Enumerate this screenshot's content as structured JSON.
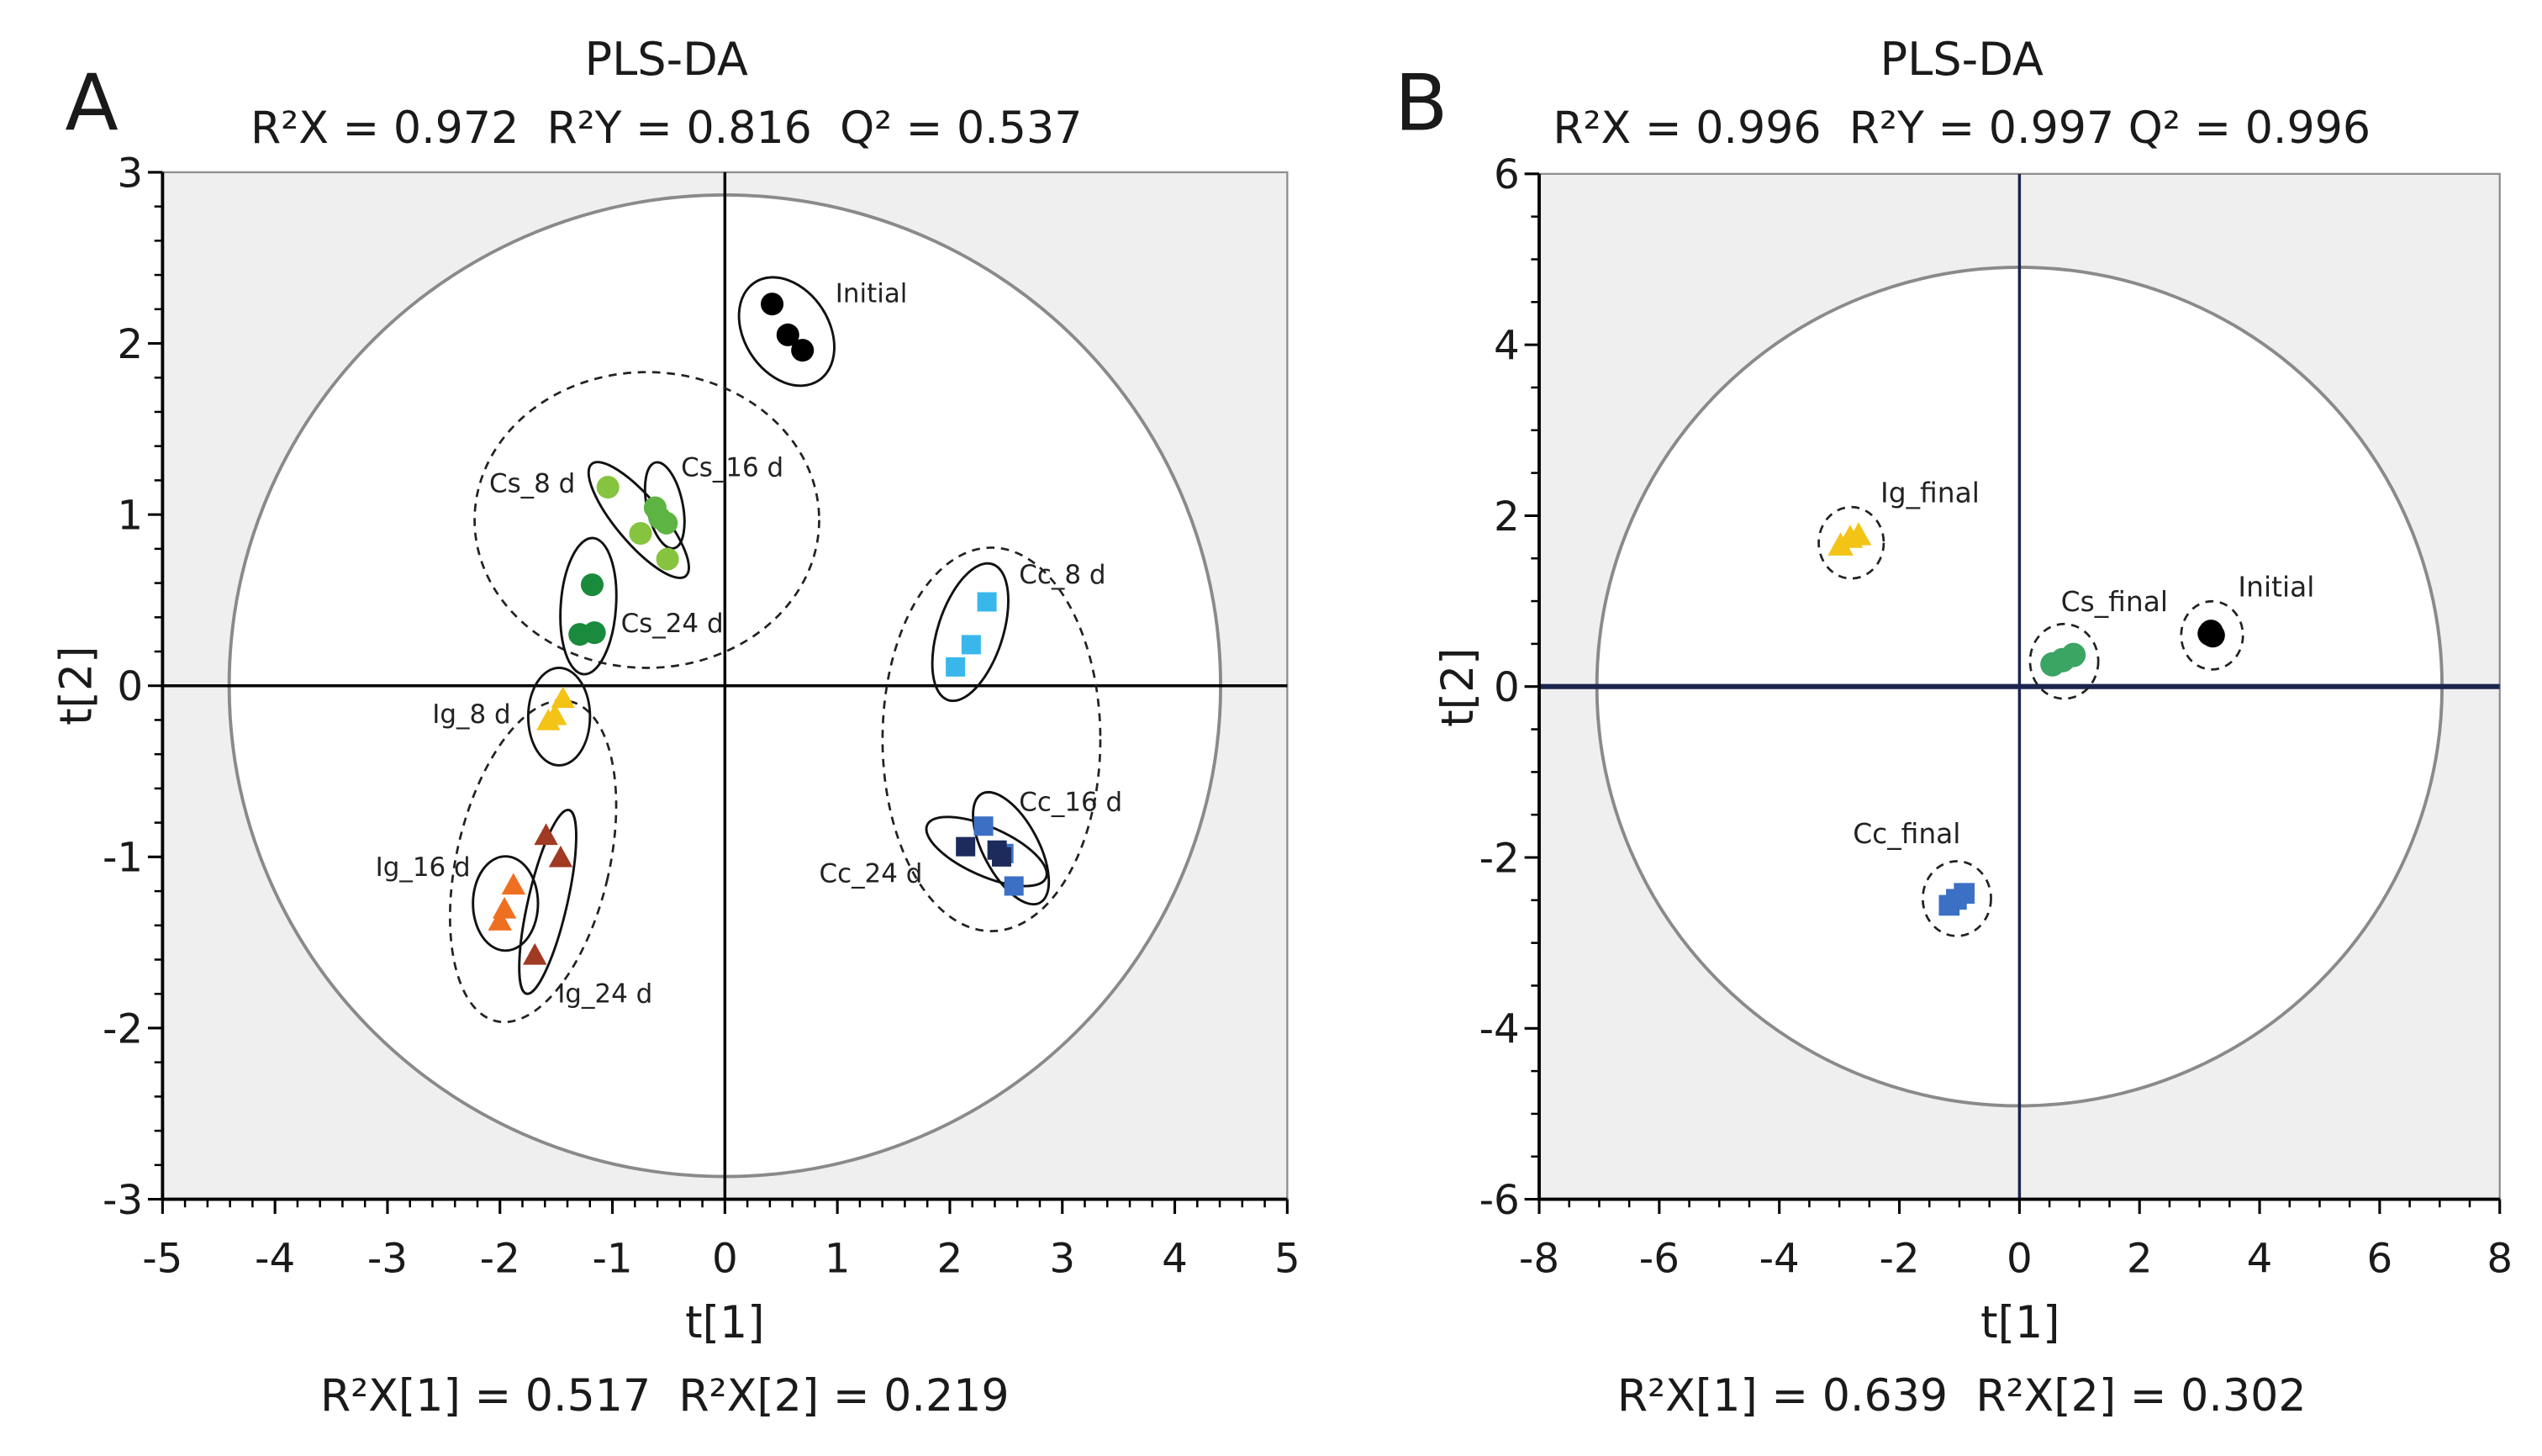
{
  "chart_data": [
    {
      "type": "scatter",
      "panel_label": "A",
      "title": "PLS-DA",
      "subtitle": "R²X = 0.972  R²Y = 0.816  Q² = 0.537",
      "xlabel": "t[1]",
      "ylabel": "t[2]",
      "footer": "R²X[1] = 0.517  R²X[2] = 0.219",
      "xlim": [
        -5,
        5
      ],
      "ylim": [
        -3,
        3
      ],
      "xticks": [
        -5,
        -4,
        -3,
        -2,
        -1,
        0,
        1,
        2,
        3,
        4,
        5
      ],
      "yticks": [
        -3,
        -2,
        -1,
        0,
        1,
        2,
        3
      ],
      "grid": false,
      "series": [
        {
          "name": "Initial",
          "marker": "circle",
          "color": "#000000",
          "points": [
            [
              0.42,
              2.23
            ],
            [
              0.56,
              2.05
            ],
            [
              0.69,
              1.96
            ]
          ]
        },
        {
          "name": "Cs_8 d",
          "marker": "circle",
          "color": "#86c440",
          "points": [
            [
              -1.04,
              1.16
            ],
            [
              -0.75,
              0.89
            ],
            [
              -0.51,
              0.74
            ]
          ]
        },
        {
          "name": "Cs_16 d",
          "marker": "circle",
          "color": "#5db443",
          "points": [
            [
              -0.62,
              1.04
            ],
            [
              -0.52,
              0.95
            ],
            [
              -0.58,
              0.98
            ]
          ]
        },
        {
          "name": "Cs_24 d",
          "marker": "circle",
          "color": "#1a8a3c",
          "points": [
            [
              -1.18,
              0.59
            ],
            [
              -1.29,
              0.3
            ],
            [
              -1.16,
              0.31
            ]
          ]
        },
        {
          "name": "Ig_8 d",
          "marker": "triangle",
          "color": "#f3c316",
          "points": [
            [
              -1.44,
              -0.08
            ],
            [
              -1.51,
              -0.18
            ],
            [
              -1.57,
              -0.21
            ]
          ]
        },
        {
          "name": "Ig_16 d",
          "marker": "triangle",
          "color": "#ef6f21",
          "points": [
            [
              -1.88,
              -1.17
            ],
            [
              -1.96,
              -1.31
            ],
            [
              -2.0,
              -1.38
            ]
          ]
        },
        {
          "name": "Ig_24 d",
          "marker": "triangle",
          "color": "#a03a22",
          "points": [
            [
              -1.59,
              -0.88
            ],
            [
              -1.46,
              -1.01
            ],
            [
              -1.69,
              -1.58
            ]
          ]
        },
        {
          "name": "Cc_8 d",
          "marker": "square",
          "color": "#3ab7ea",
          "points": [
            [
              2.33,
              0.49
            ],
            [
              2.19,
              0.24
            ],
            [
              2.05,
              0.11
            ]
          ]
        },
        {
          "name": "Cc_16 d",
          "marker": "square",
          "color": "#3b70c5",
          "points": [
            [
              2.3,
              -0.82
            ],
            [
              2.48,
              -0.98
            ],
            [
              2.57,
              -1.17
            ]
          ]
        },
        {
          "name": "Cc_24 d",
          "marker": "square",
          "color": "#1c2b5b",
          "points": [
            [
              2.14,
              -0.94
            ],
            [
              2.46,
              -1.0
            ],
            [
              2.42,
              -0.96
            ]
          ]
        }
      ]
    },
    {
      "type": "scatter",
      "panel_label": "B",
      "title": "PLS-DA",
      "subtitle": "R²X = 0.996  R²Y = 0.997 Q² = 0.996",
      "xlabel": "t[1]",
      "ylabel": "t[2]",
      "footer": "R²X[1] = 0.639  R²X[2] = 0.302",
      "xlim": [
        -8,
        8
      ],
      "ylim": [
        -6,
        6
      ],
      "xticks": [
        -8,
        -6,
        -4,
        -2,
        0,
        2,
        4,
        6,
        8
      ],
      "yticks": [
        -6,
        -4,
        -2,
        0,
        2,
        4,
        6
      ],
      "grid": false,
      "series": [
        {
          "name": "Initial",
          "marker": "circle",
          "color": "#000000",
          "points": [
            [
              3.17,
              0.62
            ],
            [
              3.22,
              0.6
            ],
            [
              3.19,
              0.64
            ]
          ]
        },
        {
          "name": "Cs_final",
          "marker": "circle",
          "color": "#3ba563",
          "points": [
            [
              0.55,
              0.26
            ],
            [
              0.72,
              0.31
            ],
            [
              0.9,
              0.37
            ]
          ]
        },
        {
          "name": "Ig_final",
          "marker": "triangle",
          "color": "#f3c316",
          "points": [
            [
              -2.98,
              1.64
            ],
            [
              -2.82,
              1.73
            ],
            [
              -2.68,
              1.76
            ]
          ]
        },
        {
          "name": "Cc_final",
          "marker": "square",
          "color": "#3b70c5",
          "points": [
            [
              -1.17,
              -2.56
            ],
            [
              -1.05,
              -2.49
            ],
            [
              -0.92,
              -2.42
            ]
          ]
        }
      ]
    }
  ]
}
